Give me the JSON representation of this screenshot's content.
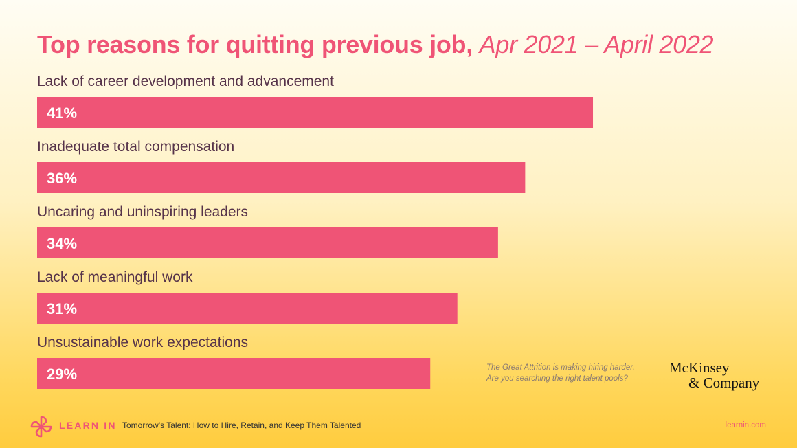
{
  "colors": {
    "bar": "#ef5476",
    "accent": "#ef5476",
    "label": "#56334a",
    "bar_text": "#ffffff"
  },
  "chart_data": {
    "type": "bar",
    "orientation": "horizontal",
    "title": "Top reasons for quitting previous job,",
    "subtitle": "Apr 2021 – April 2022",
    "categories": [
      "Lack of career development and advancement",
      "Inadequate total compensation",
      "Uncaring and uninspiring leaders",
      "Lack of meaningful work",
      "Unsustainable work expectations"
    ],
    "values": [
      41,
      36,
      34,
      31,
      29
    ],
    "value_labels": [
      "41%",
      "36%",
      "34%",
      "31%",
      "29%"
    ],
    "unit": "%",
    "xlim": [
      0,
      56
    ],
    "grid": false,
    "legend": "none"
  },
  "note": {
    "line1": "The Great Attrition is making hiring harder.",
    "line2": "Are you searching the right talent pools?"
  },
  "source_logo": {
    "line1": "McKinsey",
    "line2": "& Company"
  },
  "footer": {
    "brand": "LEARN IN",
    "brand_icon": "learn-in-flower-icon",
    "text": "Tomorrow’s Talent: How to Hire, Retain, and Keep Them Talented",
    "url": "learnin.com"
  }
}
